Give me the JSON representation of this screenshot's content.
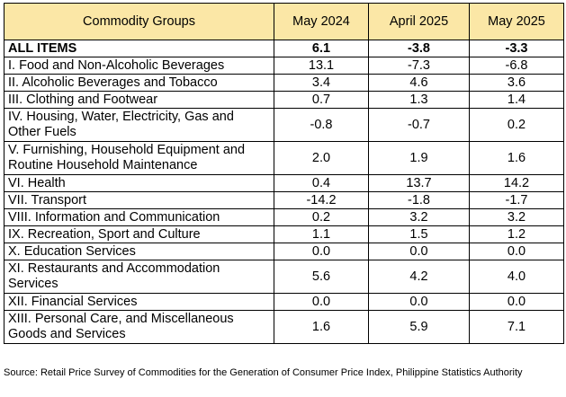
{
  "table": {
    "headers": [
      "Commodity Groups",
      "May 2024",
      "April 2025",
      "May 2025"
    ],
    "rows": [
      {
        "name": "ALL ITEMS",
        "values": [
          "6.1",
          "-3.8",
          "-3.3"
        ],
        "bold": true,
        "tall": false
      },
      {
        "name": "I. Food and Non-Alcoholic Beverages",
        "values": [
          "13.1",
          "-7.3",
          "-6.8"
        ],
        "tall": false
      },
      {
        "name": "II. Alcoholic Beverages and Tobacco",
        "values": [
          "3.4",
          "4.6",
          "3.6"
        ],
        "tall": false
      },
      {
        "name": "III. Clothing and Footwear",
        "values": [
          "0.7",
          "1.3",
          "1.4"
        ],
        "tall": false
      },
      {
        "name": "IV. Housing, Water, Electricity, Gas and Other Fuels",
        "values": [
          "-0.8",
          "-0.7",
          "0.2"
        ],
        "tall": true
      },
      {
        "name": "V. Furnishing, Household Equipment and Routine Household Maintenance",
        "values": [
          "2.0",
          "1.9",
          "1.6"
        ],
        "tall": true
      },
      {
        "name": "VI. Health",
        "values": [
          "0.4",
          "13.7",
          "14.2"
        ],
        "tall": false
      },
      {
        "name": "VII. Transport",
        "values": [
          "-14.2",
          "-1.8",
          "-1.7"
        ],
        "tall": false
      },
      {
        "name": "VIII. Information and Communication",
        "values": [
          "0.2",
          "3.2",
          "3.2"
        ],
        "tall": false
      },
      {
        "name": "IX. Recreation, Sport and Culture",
        "values": [
          "1.1",
          "1.5",
          "1.2"
        ],
        "tall": false
      },
      {
        "name": "X. Education Services",
        "values": [
          "0.0",
          "0.0",
          "0.0"
        ],
        "tall": false
      },
      {
        "name": "XI. Restaurants and Accommodation Services",
        "values": [
          "5.6",
          "4.2",
          "4.0"
        ],
        "tall": true
      },
      {
        "name": "XII. Financial Services",
        "values": [
          "0.0",
          "0.0",
          "0.0"
        ],
        "tall": false
      },
      {
        "name": "XIII. Personal Care, and Miscellaneous Goods and Services",
        "values": [
          "1.6",
          "5.9",
          "7.1"
        ],
        "tall": true
      }
    ]
  },
  "source": "Source: Retail Price Survey of Commodities for the Generation of Consumer Price Index, Philippine Statistics Authority"
}
